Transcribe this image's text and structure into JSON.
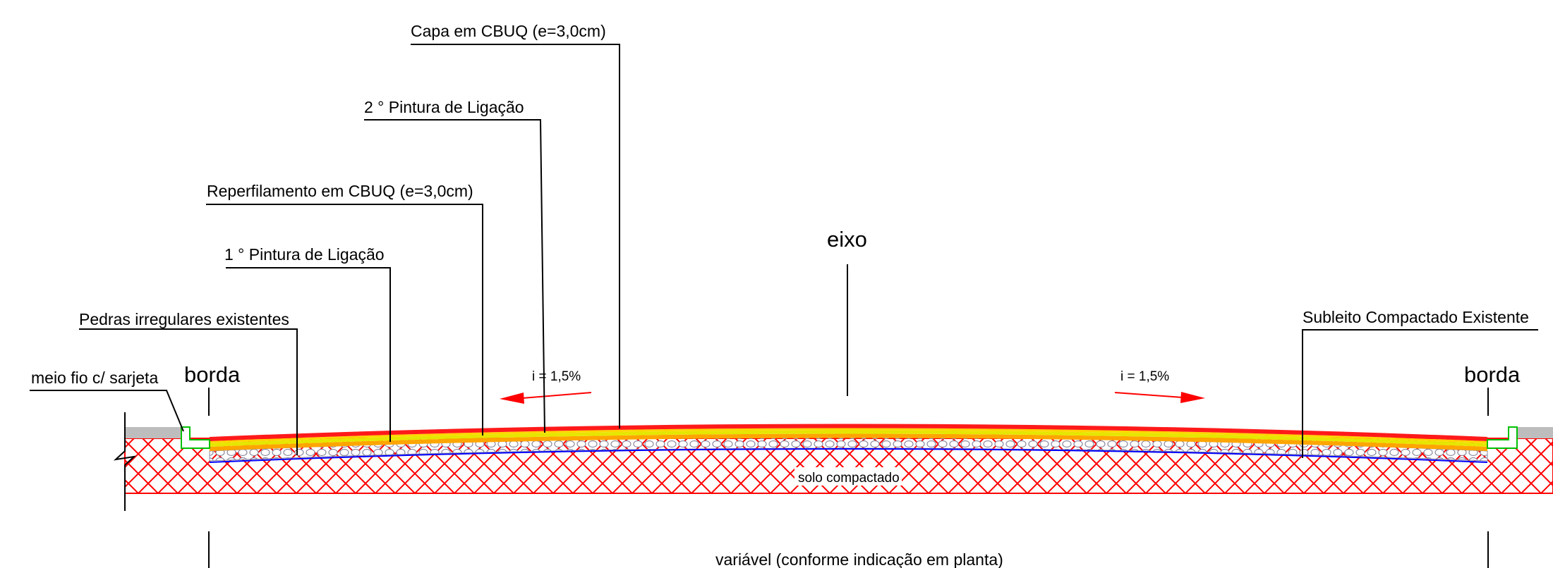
{
  "labels": {
    "capa": "Capa em CBUQ (e=3,0cm)",
    "pintura2": "2 ° Pintura de Ligação",
    "reperfilamento": "Reperfilamento em CBUQ (e=3,0cm)",
    "pintura1": "1 ° Pintura de Ligação",
    "pedras": "Pedras irregulares existentes",
    "meio_fio": "meio fio c/ sarjeta",
    "borda_left": "borda",
    "borda_right": "borda",
    "eixo": "eixo",
    "slope_left": "i = 1,5%",
    "slope_right": "i = 1,5%",
    "subleito": "Subleito Compactado Existente",
    "solo": "solo compactado",
    "dimension": "variável (conforme indicação em planta)"
  },
  "colors": {
    "capa": "#ff1a1a",
    "pintura2": "#ffd600",
    "reperfilamento": "#e6e600",
    "pintura1": "#ffa500",
    "pedras": "#8a8aa0",
    "subleito_line": "#0000ff",
    "solo_hatch": "#ff0000",
    "meio_fio": "#00c000",
    "slope_arrow": "#ff0000",
    "sidewalk": "#bdbdbd"
  }
}
